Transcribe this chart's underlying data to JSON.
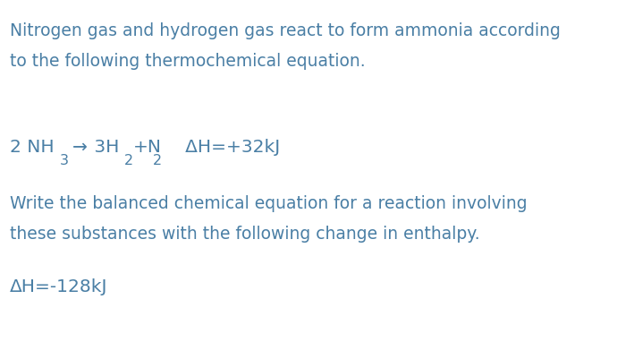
{
  "background_color": "#ffffff",
  "text_color": "#4a7fa5",
  "figsize": [
    6.9,
    3.82
  ],
  "dpi": 100,
  "font_size_body": 13.5,
  "font_size_equation": 14.5,
  "font_size_small": 11.5,
  "line1": "Nitrogen gas and hydrogen gas react to form ammonia according",
  "line2": "to the following thermochemical equation.",
  "equation_line": "2 NH",
  "eq_sub1": "3",
  "eq_arrow": "→",
  "eq_part2": " 3H",
  "eq_sub2": "2",
  "eq_part3": "+N",
  "eq_sub3": "2",
  "eq_delta": "   ΔH=+32kJ",
  "line5": "Write the balanced chemical equation for a reaction involving",
  "line6": "these substances with the following change in enthalpy.",
  "delta_line_prefix": "ΔH=-128kJ"
}
